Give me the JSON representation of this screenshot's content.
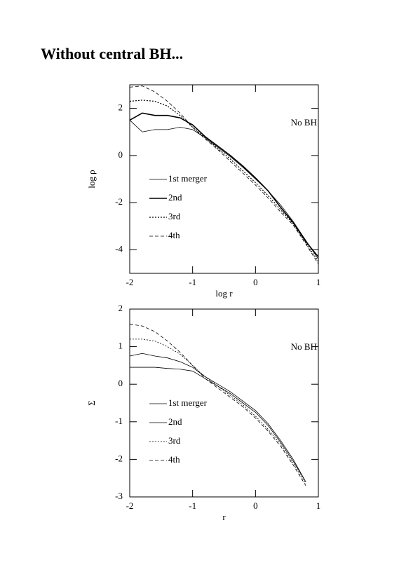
{
  "title": "Without central BH...",
  "chart_data": [
    {
      "type": "line",
      "xlabel": "log r",
      "ylabel": "log ρ",
      "annotation": "No BH",
      "x": [
        -2,
        -1.8,
        -1.6,
        -1.4,
        -1.2,
        -1,
        -0.8,
        -0.6,
        -0.4,
        -0.2,
        0,
        0.2,
        0.4,
        0.6,
        0.8,
        1
      ],
      "xlim": [
        -2,
        1
      ],
      "xticks": [
        -2,
        -1,
        0,
        1
      ],
      "ylim": [
        -5,
        3
      ],
      "yticks": [
        -4,
        -2,
        0,
        2
      ],
      "legend": "left",
      "series": [
        {
          "name": "1st merger",
          "color": "#000000",
          "dash": "solid",
          "width": 0.8,
          "values": [
            1.5,
            1.0,
            1.1,
            1.1,
            1.2,
            1.1,
            0.75,
            0.35,
            -0.05,
            -0.5,
            -1.0,
            -1.5,
            -2.1,
            -2.8,
            -3.6,
            -4.4
          ]
        },
        {
          "name": "2nd",
          "color": "#000000",
          "dash": "solid",
          "width": 1.6,
          "values": [
            1.5,
            1.8,
            1.7,
            1.7,
            1.6,
            1.3,
            0.8,
            0.4,
            0.0,
            -0.45,
            -0.95,
            -1.5,
            -2.2,
            -2.85,
            -3.65,
            -4.3
          ]
        },
        {
          "name": "3rd",
          "color": "#000000",
          "dash": "dotted",
          "width": 1.2,
          "values": [
            2.3,
            2.35,
            2.3,
            2.1,
            1.7,
            1.2,
            0.75,
            0.3,
            -0.15,
            -0.65,
            -1.15,
            -1.7,
            -2.3,
            -2.9,
            -3.7,
            -4.5
          ]
        },
        {
          "name": "4th",
          "color": "#000000",
          "dash": "dashed",
          "width": 0.8,
          "values": [
            2.9,
            2.95,
            2.7,
            2.3,
            1.8,
            1.2,
            0.7,
            0.25,
            -0.25,
            -0.75,
            -1.25,
            -1.8,
            -2.4,
            -2.95,
            -3.75,
            -4.6
          ]
        }
      ]
    },
    {
      "type": "line",
      "xlabel": "r",
      "ylabel": "Σ",
      "annotation": "No BH",
      "x": [
        -2,
        -1.8,
        -1.6,
        -1.4,
        -1.2,
        -1,
        -0.8,
        -0.6,
        -0.4,
        -0.2,
        0,
        0.2,
        0.4,
        0.6,
        0.8,
        1
      ],
      "xlim": [
        -2,
        1
      ],
      "xticks": [
        -2,
        -1,
        0,
        1
      ],
      "ylim": [
        -3,
        2
      ],
      "yticks": [
        -3,
        -2,
        -1,
        0,
        1,
        2
      ],
      "legend": "left",
      "series": [
        {
          "name": "1st merger",
          "color": "#000000",
          "dash": "solid",
          "width": 0.8,
          "values": [
            0.45,
            0.45,
            0.45,
            0.42,
            0.4,
            0.35,
            0.15,
            -0.05,
            -0.25,
            -0.5,
            -0.75,
            -1.1,
            -1.55,
            -2.05,
            -2.6,
            null
          ]
        },
        {
          "name": "2nd",
          "color": "#000000",
          "dash": "solid",
          "width": 0.8,
          "values": [
            0.75,
            0.82,
            0.75,
            0.7,
            0.6,
            0.45,
            0.2,
            0.0,
            -0.2,
            -0.45,
            -0.7,
            -1.05,
            -1.5,
            -2.0,
            -2.6,
            null
          ]
        },
        {
          "name": "3rd",
          "color": "#000000",
          "dash": "dotted",
          "width": 0.8,
          "values": [
            1.2,
            1.2,
            1.15,
            1.0,
            0.8,
            0.5,
            0.2,
            -0.05,
            -0.3,
            -0.55,
            -0.85,
            -1.2,
            -1.6,
            -2.1,
            -2.65,
            null
          ]
        },
        {
          "name": "4th",
          "color": "#000000",
          "dash": "dashed",
          "width": 0.8,
          "values": [
            1.6,
            1.55,
            1.4,
            1.15,
            0.85,
            0.5,
            0.15,
            -0.1,
            -0.35,
            -0.6,
            -0.9,
            -1.25,
            -1.65,
            -2.15,
            -2.7,
            null
          ]
        }
      ]
    }
  ]
}
